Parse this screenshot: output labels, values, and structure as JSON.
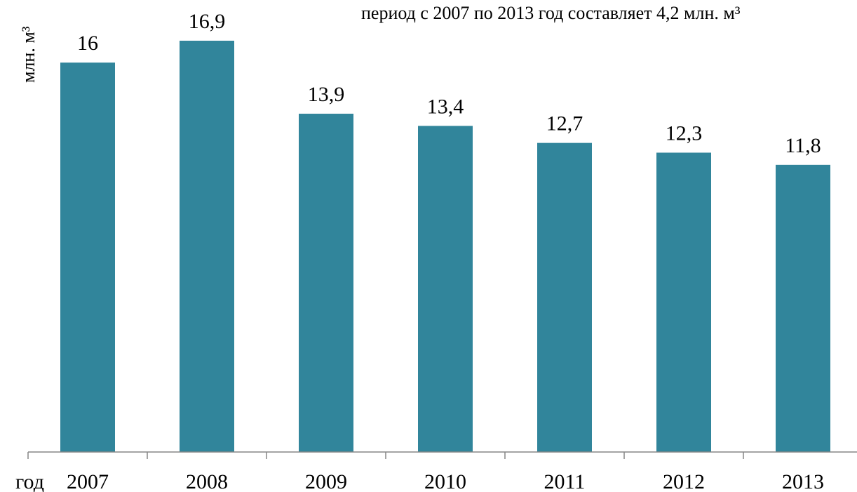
{
  "annotation": "период с 2007 по 2013 год составляет 4,2 млн. м³",
  "chart_data": {
    "type": "bar",
    "categories": [
      "2007",
      "2008",
      "2009",
      "2010",
      "2011",
      "2012",
      "2013"
    ],
    "values": [
      16,
      16.9,
      13.9,
      13.4,
      12.7,
      12.3,
      11.8
    ],
    "value_labels": [
      "16",
      "16,9",
      "13,9",
      "13,4",
      "12,7",
      "12,3",
      "11,8"
    ],
    "title": "",
    "xlabel": "год",
    "ylabel": "млн. м³",
    "ylim": [
      0,
      19
    ],
    "grid": false,
    "legend": "none",
    "bar_color": "#31859b"
  }
}
